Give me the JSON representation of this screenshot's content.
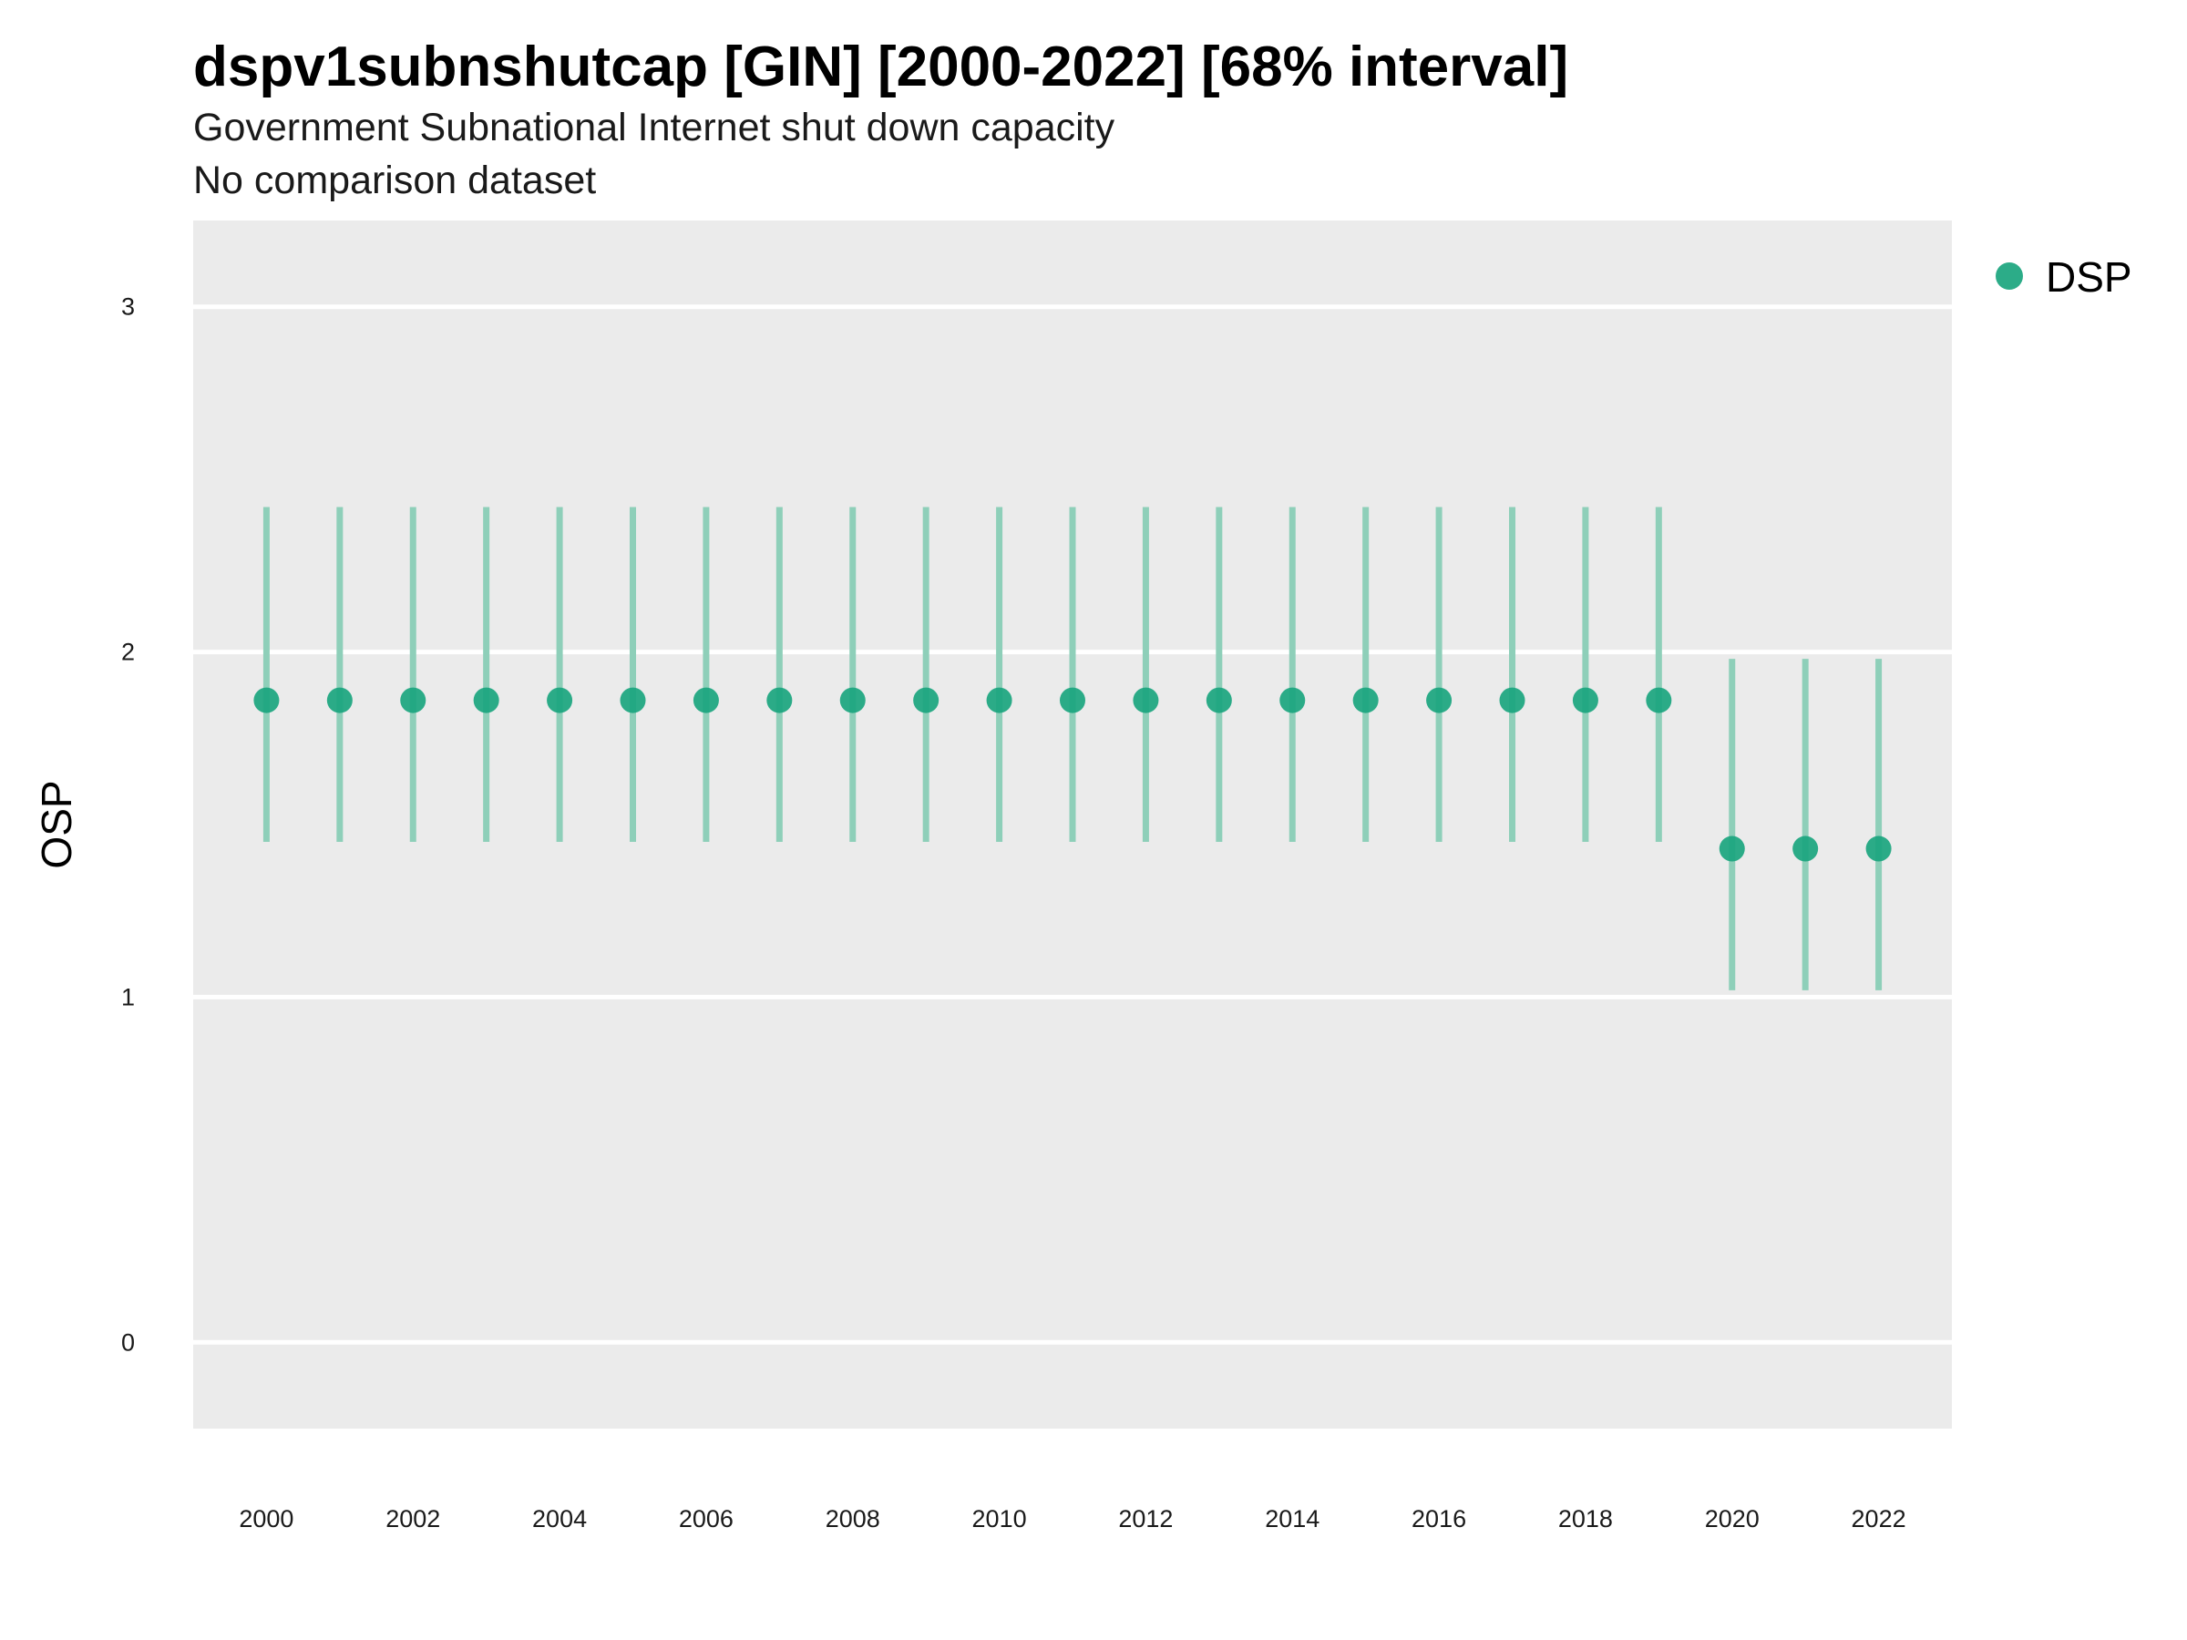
{
  "chart_data": {
    "type": "scatter",
    "title": "dspv1subnshutcap [GIN] [2000-2022] [68% interval]",
    "subtitle": "Government Subnational Internet shut down capacity",
    "caption": "No comparison dataset",
    "ylabel": "OSP",
    "xlabel": "",
    "x_ticks": [
      "2000",
      "2002",
      "2004",
      "2006",
      "2008",
      "2010",
      "2012",
      "2014",
      "2016",
      "2018",
      "2020",
      "2022"
    ],
    "y_ticks": [
      "0",
      "1",
      "2",
      "3"
    ],
    "xlim": [
      1999,
      2023
    ],
    "ylim": [
      -0.25,
      3.25
    ],
    "grid": true,
    "legend_position": "top-right",
    "colors": {
      "point": "#1aa57e",
      "interval": "#8ecfb9",
      "panel": "#ebebeb",
      "grid": "#ffffff"
    },
    "series": [
      {
        "name": "DSP",
        "x": [
          2000,
          2001,
          2002,
          2003,
          2004,
          2005,
          2006,
          2007,
          2008,
          2009,
          2010,
          2011,
          2012,
          2013,
          2014,
          2015,
          2016,
          2017,
          2018,
          2019,
          2020,
          2021,
          2022
        ],
        "y": [
          1.86,
          1.86,
          1.86,
          1.86,
          1.86,
          1.86,
          1.86,
          1.86,
          1.86,
          1.86,
          1.86,
          1.86,
          1.86,
          1.86,
          1.86,
          1.86,
          1.86,
          1.86,
          1.86,
          1.86,
          1.43,
          1.43,
          1.43
        ],
        "lower": [
          1.45,
          1.45,
          1.45,
          1.45,
          1.45,
          1.45,
          1.45,
          1.45,
          1.45,
          1.45,
          1.45,
          1.45,
          1.45,
          1.45,
          1.45,
          1.45,
          1.45,
          1.45,
          1.45,
          1.45,
          1.02,
          1.02,
          1.02
        ],
        "upper": [
          2.42,
          2.42,
          2.42,
          2.42,
          2.42,
          2.42,
          2.42,
          2.42,
          2.42,
          2.42,
          2.42,
          2.42,
          2.42,
          2.42,
          2.42,
          2.42,
          2.42,
          2.42,
          2.42,
          2.42,
          1.98,
          1.98,
          1.98
        ]
      }
    ]
  }
}
